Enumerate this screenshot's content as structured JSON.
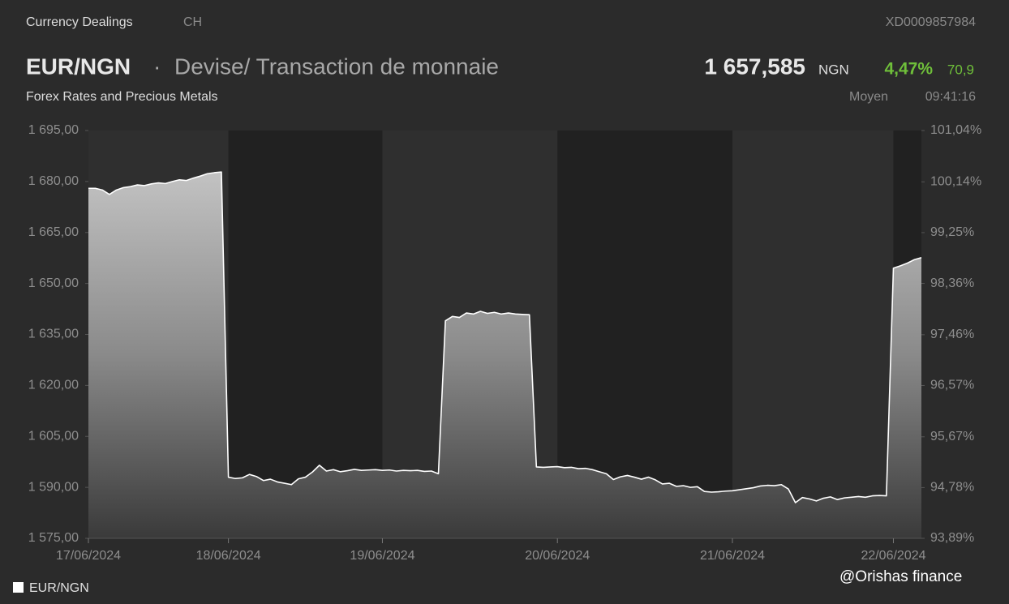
{
  "header": {
    "source": "Currency Dealings",
    "country": "CH",
    "isin": "XD0009857984",
    "symbol": "EUR/NGN",
    "separator": "·",
    "name": "Devise/ Transaction de monnaie",
    "price": "1 657,585",
    "currency": "NGN",
    "change_pct": "4,47%",
    "change": "70,9",
    "category": "Forex Rates and Precious Metals",
    "price_type": "Moyen",
    "time": "09:41:16"
  },
  "watermark": "@Orishas finance",
  "chart_data": {
    "type": "area",
    "grid": false,
    "legend": "bottom-left",
    "categories": [
      "17/06/2024",
      null,
      null,
      null,
      null,
      null,
      null,
      null,
      null,
      null,
      null,
      null,
      null,
      null,
      null,
      null,
      null,
      null,
      null,
      null,
      "18/06/2024",
      null,
      null,
      null,
      null,
      null,
      null,
      null,
      null,
      null,
      null,
      null,
      null,
      null,
      null,
      null,
      null,
      null,
      null,
      null,
      null,
      null,
      "19/06/2024",
      null,
      null,
      null,
      null,
      null,
      null,
      null,
      null,
      null,
      null,
      null,
      null,
      null,
      null,
      null,
      null,
      null,
      null,
      null,
      null,
      null,
      null,
      null,
      null,
      "20/06/2024",
      null,
      null,
      null,
      null,
      null,
      null,
      null,
      null,
      null,
      null,
      null,
      null,
      null,
      null,
      null,
      null,
      null,
      null,
      null,
      null,
      null,
      null,
      null,
      null,
      "21/06/2024",
      null,
      null,
      null,
      null,
      null,
      null,
      null,
      null,
      null,
      null,
      null,
      null,
      null,
      null,
      null,
      null,
      null,
      null,
      null,
      null,
      null,
      null,
      "22/06/2024",
      null,
      null,
      null,
      null
    ],
    "series": [
      {
        "name": "EUR/NGN",
        "color": "#ffffff",
        "values": [
          1678.0,
          1678.0,
          1677.5,
          1676.2,
          1677.5,
          1678.2,
          1678.5,
          1679.0,
          1678.8,
          1679.3,
          1679.6,
          1679.4,
          1680.0,
          1680.5,
          1680.3,
          1681.0,
          1681.6,
          1682.3,
          1682.6,
          1682.8,
          1593.0,
          1592.6,
          1592.8,
          1593.8,
          1593.2,
          1592.0,
          1592.4,
          1591.6,
          1591.2,
          1590.8,
          1592.5,
          1593.0,
          1594.5,
          1596.5,
          1594.8,
          1595.2,
          1594.6,
          1594.9,
          1595.3,
          1595.0,
          1595.1,
          1595.2,
          1595.0,
          1595.1,
          1594.8,
          1595.0,
          1594.9,
          1595.0,
          1594.7,
          1594.8,
          1594.0,
          1639.0,
          1640.3,
          1640.0,
          1641.3,
          1641.0,
          1641.8,
          1641.2,
          1641.5,
          1641.0,
          1641.3,
          1641.0,
          1640.9,
          1640.8,
          1596.0,
          1595.9,
          1596.0,
          1596.1,
          1595.8,
          1595.9,
          1595.5,
          1595.6,
          1595.2,
          1594.6,
          1594.0,
          1592.3,
          1593.1,
          1593.5,
          1593.0,
          1592.4,
          1593.0,
          1592.2,
          1591.0,
          1591.2,
          1590.3,
          1590.5,
          1590.0,
          1590.2,
          1588.8,
          1588.6,
          1588.7,
          1588.9,
          1589.0,
          1589.3,
          1589.6,
          1589.9,
          1590.4,
          1590.6,
          1590.5,
          1590.8,
          1589.5,
          1585.5,
          1587.0,
          1586.6,
          1586.0,
          1586.8,
          1587.2,
          1586.4,
          1586.9,
          1587.1,
          1587.3,
          1587.1,
          1587.5,
          1587.6,
          1587.5,
          1654.5,
          1655.2,
          1656.0,
          1657.0,
          1657.6
        ]
      }
    ],
    "ylim": [
      1575,
      1695
    ],
    "yticks": [
      {
        "value": 1575,
        "label": "1 575,00"
      },
      {
        "value": 1590,
        "label": "1 590,00"
      },
      {
        "value": 1605,
        "label": "1 605,00"
      },
      {
        "value": 1620,
        "label": "1 620,00"
      },
      {
        "value": 1635,
        "label": "1 635,00"
      },
      {
        "value": 1650,
        "label": "1 650,00"
      },
      {
        "value": 1665,
        "label": "1 665,00"
      },
      {
        "value": 1680,
        "label": "1 680,00"
      },
      {
        "value": 1695,
        "label": "1 695,00"
      }
    ],
    "y2lim": [
      93.89,
      101.04
    ],
    "y2ticks": [
      {
        "value": 93.89,
        "label": "93,89%"
      },
      {
        "value": 94.78,
        "label": "94,78%"
      },
      {
        "value": 95.67,
        "label": "95,67%"
      },
      {
        "value": 96.57,
        "label": "96,57%"
      },
      {
        "value": 97.46,
        "label": "97,46%"
      },
      {
        "value": 98.36,
        "label": "98,36%"
      },
      {
        "value": 99.25,
        "label": "99,25%"
      },
      {
        "value": 100.14,
        "label": "100,14%"
      },
      {
        "value": 101.04,
        "label": "101,04%"
      }
    ]
  }
}
